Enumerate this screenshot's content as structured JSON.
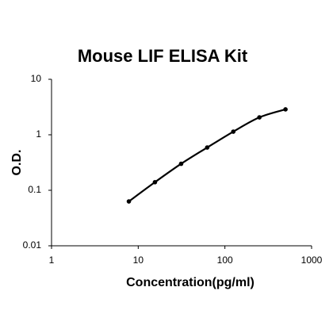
{
  "chart_data": {
    "type": "line",
    "title": "Mouse LIF ELISA Kit",
    "x_label": "Concentration(pg/ml)",
    "y_label": "O.D.",
    "x": [
      7.8,
      15.6,
      31.25,
      62.5,
      125,
      250,
      500
    ],
    "series": [
      {
        "color": "#000000",
        "values": [
          0.063,
          0.14,
          0.3,
          0.59,
          1.14,
          2.06,
          2.87
        ]
      }
    ],
    "xscale": "log",
    "yscale": "log",
    "xlim": [
      1,
      1000
    ],
    "ylim": [
      0.01,
      10
    ],
    "xticks": [
      1,
      10,
      100,
      1000
    ],
    "yticks": [
      0.01,
      0.1,
      1,
      10
    ],
    "grid": false
  }
}
